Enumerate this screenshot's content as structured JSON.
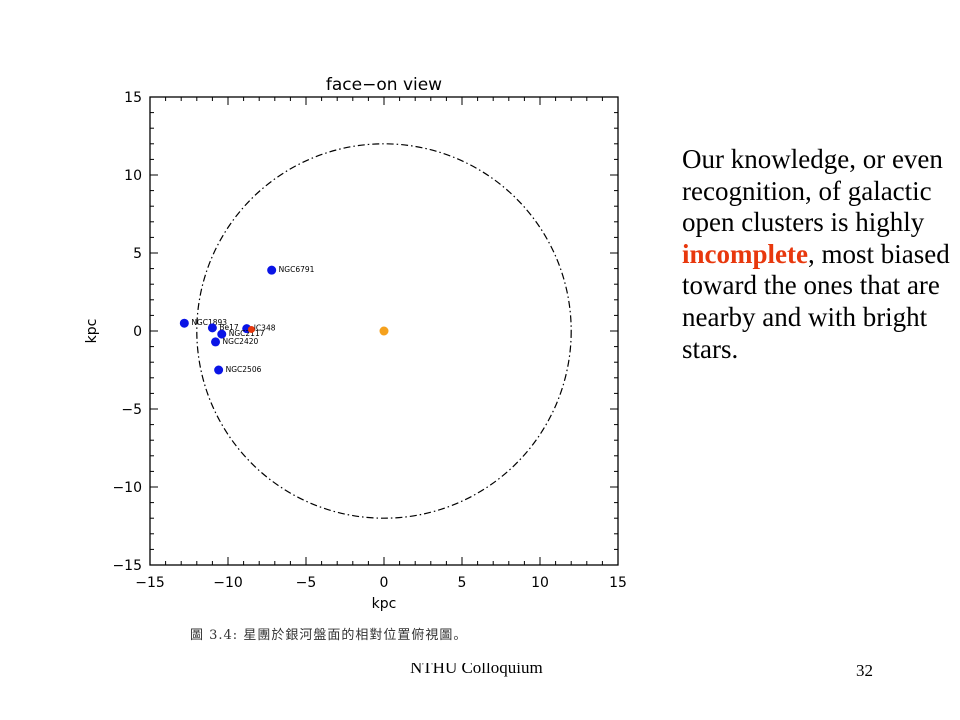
{
  "slide": {
    "body_text_before": "Our knowledge, or even recognition, of galactic open clusters is highly ",
    "body_text_highlight": "incomplete",
    "body_text_after": ", most biased toward the ones that are nearby and with bright stars.",
    "highlight_color": "#e8380d",
    "caption": "圖 3.4: 星團於銀河盤面的相對位置俯視圖。",
    "footer": "NTHU Colloquium",
    "page_number": "32"
  },
  "chart_data": {
    "type": "scatter",
    "title": "face−on view",
    "xlabel": "kpc",
    "ylabel": "kpc",
    "xlim": [
      -15,
      15
    ],
    "ylim": [
      -15,
      15
    ],
    "xticks": [
      -15,
      -10,
      -5,
      0,
      5,
      10,
      15
    ],
    "yticks": [
      -15,
      -10,
      -5,
      0,
      5,
      10,
      15
    ],
    "xtick_labels": [
      "−15",
      "−10",
      "−5",
      "0",
      "5",
      "10",
      "15"
    ],
    "ytick_labels": [
      "−15",
      "−10",
      "−5",
      "0",
      "5",
      "10",
      "15"
    ],
    "grid": false,
    "circle": {
      "center": [
        0,
        0
      ],
      "radius": 12,
      "style": "dash-dot",
      "color": "#000000"
    },
    "center_marker": {
      "x": 0,
      "y": 0,
      "color": "#f5a11d"
    },
    "point_color": "#0a14e6",
    "sun_marker": {
      "x": -8.5,
      "y": 0.1,
      "color": "#e8380d"
    },
    "points": [
      {
        "label": "NGC6791",
        "x": -7.2,
        "y": 3.9
      },
      {
        "label": "NGC1893",
        "x": -12.8,
        "y": 0.5
      },
      {
        "label": "Be17",
        "x": -11.0,
        "y": 0.2
      },
      {
        "label": "IC348",
        "x": -8.8,
        "y": 0.15
      },
      {
        "label": "NGC2117",
        "x": -10.4,
        "y": -0.2
      },
      {
        "label": "NGC2420",
        "x": -10.8,
        "y": -0.7
      },
      {
        "label": "NGC2506",
        "x": -10.6,
        "y": -2.5
      }
    ]
  }
}
